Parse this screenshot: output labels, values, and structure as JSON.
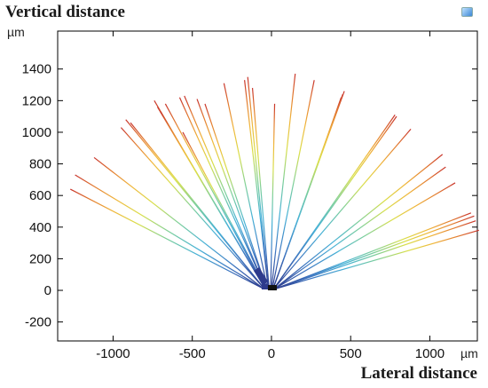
{
  "header": {
    "title": "Vertical distance",
    "y_unit": "µm",
    "x_title": "Lateral distance",
    "x_unit": "µm",
    "corner_icon": "colormap-icon"
  },
  "chart_data": {
    "type": "line",
    "title": "Vertical distance",
    "xlabel": "Lateral distance",
    "ylabel": "Vertical distance",
    "x_unit": "µm",
    "y_unit": "µm",
    "xlim": [
      -1350,
      1300
    ],
    "ylim": [
      -320,
      1640
    ],
    "x_ticks": [
      -1000,
      -500,
      0,
      500,
      1000
    ],
    "y_ticks": [
      -200,
      0,
      200,
      400,
      600,
      800,
      1000,
      1200,
      1400
    ],
    "grid": false,
    "legend": "none",
    "colormap": [
      "#2d3a8c",
      "#3f78c2",
      "#47b2d6",
      "#7ccf9a",
      "#d9df4a",
      "#f0b63a",
      "#e27a30",
      "#c8332b"
    ],
    "series": [
      {
        "x": [
          -50,
          -1270
        ],
        "y": [
          10,
          640
        ]
      },
      {
        "x": [
          -50,
          -1240
        ],
        "y": [
          10,
          730
        ]
      },
      {
        "x": [
          -50,
          -1120
        ],
        "y": [
          10,
          840
        ]
      },
      {
        "x": [
          -45,
          -950
        ],
        "y": [
          10,
          1030
        ]
      },
      {
        "x": [
          -45,
          -920
        ],
        "y": [
          10,
          1080
        ]
      },
      {
        "x": [
          -45,
          -890
        ],
        "y": [
          10,
          1060
        ]
      },
      {
        "x": [
          -40,
          -740
        ],
        "y": [
          10,
          1200
        ]
      },
      {
        "x": [
          -40,
          -720
        ],
        "y": [
          10,
          1160
        ]
      },
      {
        "x": [
          -40,
          -700
        ],
        "y": [
          10,
          1130
        ]
      },
      {
        "x": [
          -40,
          -670
        ],
        "y": [
          10,
          1180
        ]
      },
      {
        "x": [
          -35,
          -580
        ],
        "y": [
          10,
          1220
        ]
      },
      {
        "x": [
          -35,
          -560
        ],
        "y": [
          10,
          1000
        ]
      },
      {
        "x": [
          -35,
          -550
        ],
        "y": [
          10,
          1230
        ]
      },
      {
        "x": [
          -30,
          -470
        ],
        "y": [
          10,
          1210
        ]
      },
      {
        "x": [
          -30,
          -420
        ],
        "y": [
          10,
          1180
        ]
      },
      {
        "x": [
          -25,
          -300
        ],
        "y": [
          10,
          1310
        ]
      },
      {
        "x": [
          -20,
          -170
        ],
        "y": [
          10,
          1330
        ]
      },
      {
        "x": [
          -20,
          -150
        ],
        "y": [
          10,
          1350
        ]
      },
      {
        "x": [
          -15,
          -120
        ],
        "y": [
          10,
          1280
        ]
      },
      {
        "x": [
          -5,
          20
        ],
        "y": [
          10,
          1180
        ]
      },
      {
        "x": [
          0,
          150
        ],
        "y": [
          10,
          1370
        ]
      },
      {
        "x": [
          5,
          270
        ],
        "y": [
          10,
          1330
        ]
      },
      {
        "x": [
          10,
          440
        ],
        "y": [
          10,
          1220
        ]
      },
      {
        "x": [
          10,
          450
        ],
        "y": [
          10,
          1240
        ]
      },
      {
        "x": [
          10,
          460
        ],
        "y": [
          10,
          1260
        ]
      },
      {
        "x": [
          15,
          780
        ],
        "y": [
          10,
          1110
        ]
      },
      {
        "x": [
          15,
          790
        ],
        "y": [
          10,
          1100
        ]
      },
      {
        "x": [
          15,
          880
        ],
        "y": [
          10,
          1020
        ]
      },
      {
        "x": [
          20,
          1080
        ],
        "y": [
          10,
          860
        ]
      },
      {
        "x": [
          20,
          1100
        ],
        "y": [
          10,
          780
        ]
      },
      {
        "x": [
          20,
          1160
        ],
        "y": [
          10,
          680
        ]
      },
      {
        "x": [
          25,
          1260
        ],
        "y": [
          10,
          490
        ]
      },
      {
        "x": [
          25,
          1280
        ],
        "y": [
          10,
          470
        ]
      },
      {
        "x": [
          25,
          1290
        ],
        "y": [
          10,
          440
        ]
      },
      {
        "x": [
          25,
          1310
        ],
        "y": [
          10,
          380
        ]
      }
    ]
  }
}
